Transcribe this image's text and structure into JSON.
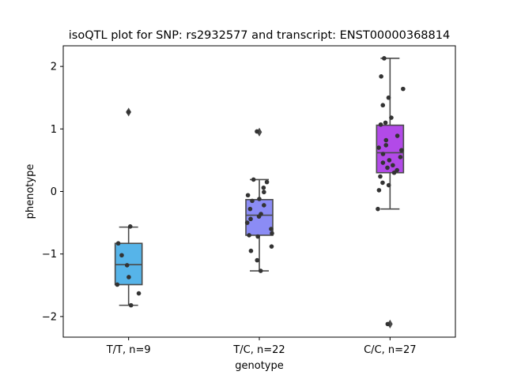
{
  "chart_data": {
    "type": "box",
    "title": "isoQTL plot for SNP: rs2932577 and transcript: ENST00000368814",
    "xlabel": "genotype",
    "ylabel": "phenotype",
    "ylim": [
      -2.33,
      2.33
    ],
    "yticks": [
      {
        "value": 2,
        "label": "2"
      },
      {
        "value": 1,
        "label": "1"
      },
      {
        "value": 0,
        "label": "0"
      },
      {
        "value": -1,
        "label": "−1"
      },
      {
        "value": -2,
        "label": "−2"
      }
    ],
    "categories": [
      "T/T, n=9",
      "T/C, n=22",
      "C/C, n=27"
    ],
    "colors": [
      "#56b4e9",
      "#8b8cf5",
      "#b24ae8"
    ],
    "boxes": [
      {
        "whisker_low": -1.82,
        "q1": -1.49,
        "median": -1.17,
        "q3": -0.83,
        "whisker_high": -0.57,
        "outliers": [
          1.27
        ]
      },
      {
        "whisker_low": -1.27,
        "q1": -0.7,
        "median": -0.38,
        "q3": -0.13,
        "whisker_high": 0.19,
        "outliers": [
          0.95
        ]
      },
      {
        "whisker_low": -0.28,
        "q1": 0.3,
        "median": 0.62,
        "q3": 1.06,
        "whisker_high": 2.13,
        "outliers": [
          -2.12
        ]
      }
    ],
    "points": [
      [
        1.27,
        -0.56,
        -0.83,
        -1.02,
        -1.18,
        -1.37,
        -1.49,
        -1.63,
        -1.82
      ],
      [
        0.96,
        0.19,
        0.15,
        0.06,
        -0.06,
        -0.12,
        -0.15,
        -0.22,
        -0.28,
        -0.36,
        -0.4,
        -0.44,
        -0.5,
        -0.6,
        -0.67,
        -0.7,
        -0.72,
        -0.88,
        -0.95,
        -1.1,
        -1.27,
        -0.01
      ],
      [
        2.13,
        1.84,
        1.64,
        1.5,
        1.38,
        1.18,
        1.1,
        1.07,
        0.89,
        0.82,
        0.74,
        0.7,
        0.66,
        0.6,
        0.55,
        0.5,
        0.46,
        0.42,
        0.38,
        0.34,
        0.3,
        0.24,
        0.14,
        0.1,
        0.02,
        -0.28,
        -2.12
      ]
    ]
  }
}
